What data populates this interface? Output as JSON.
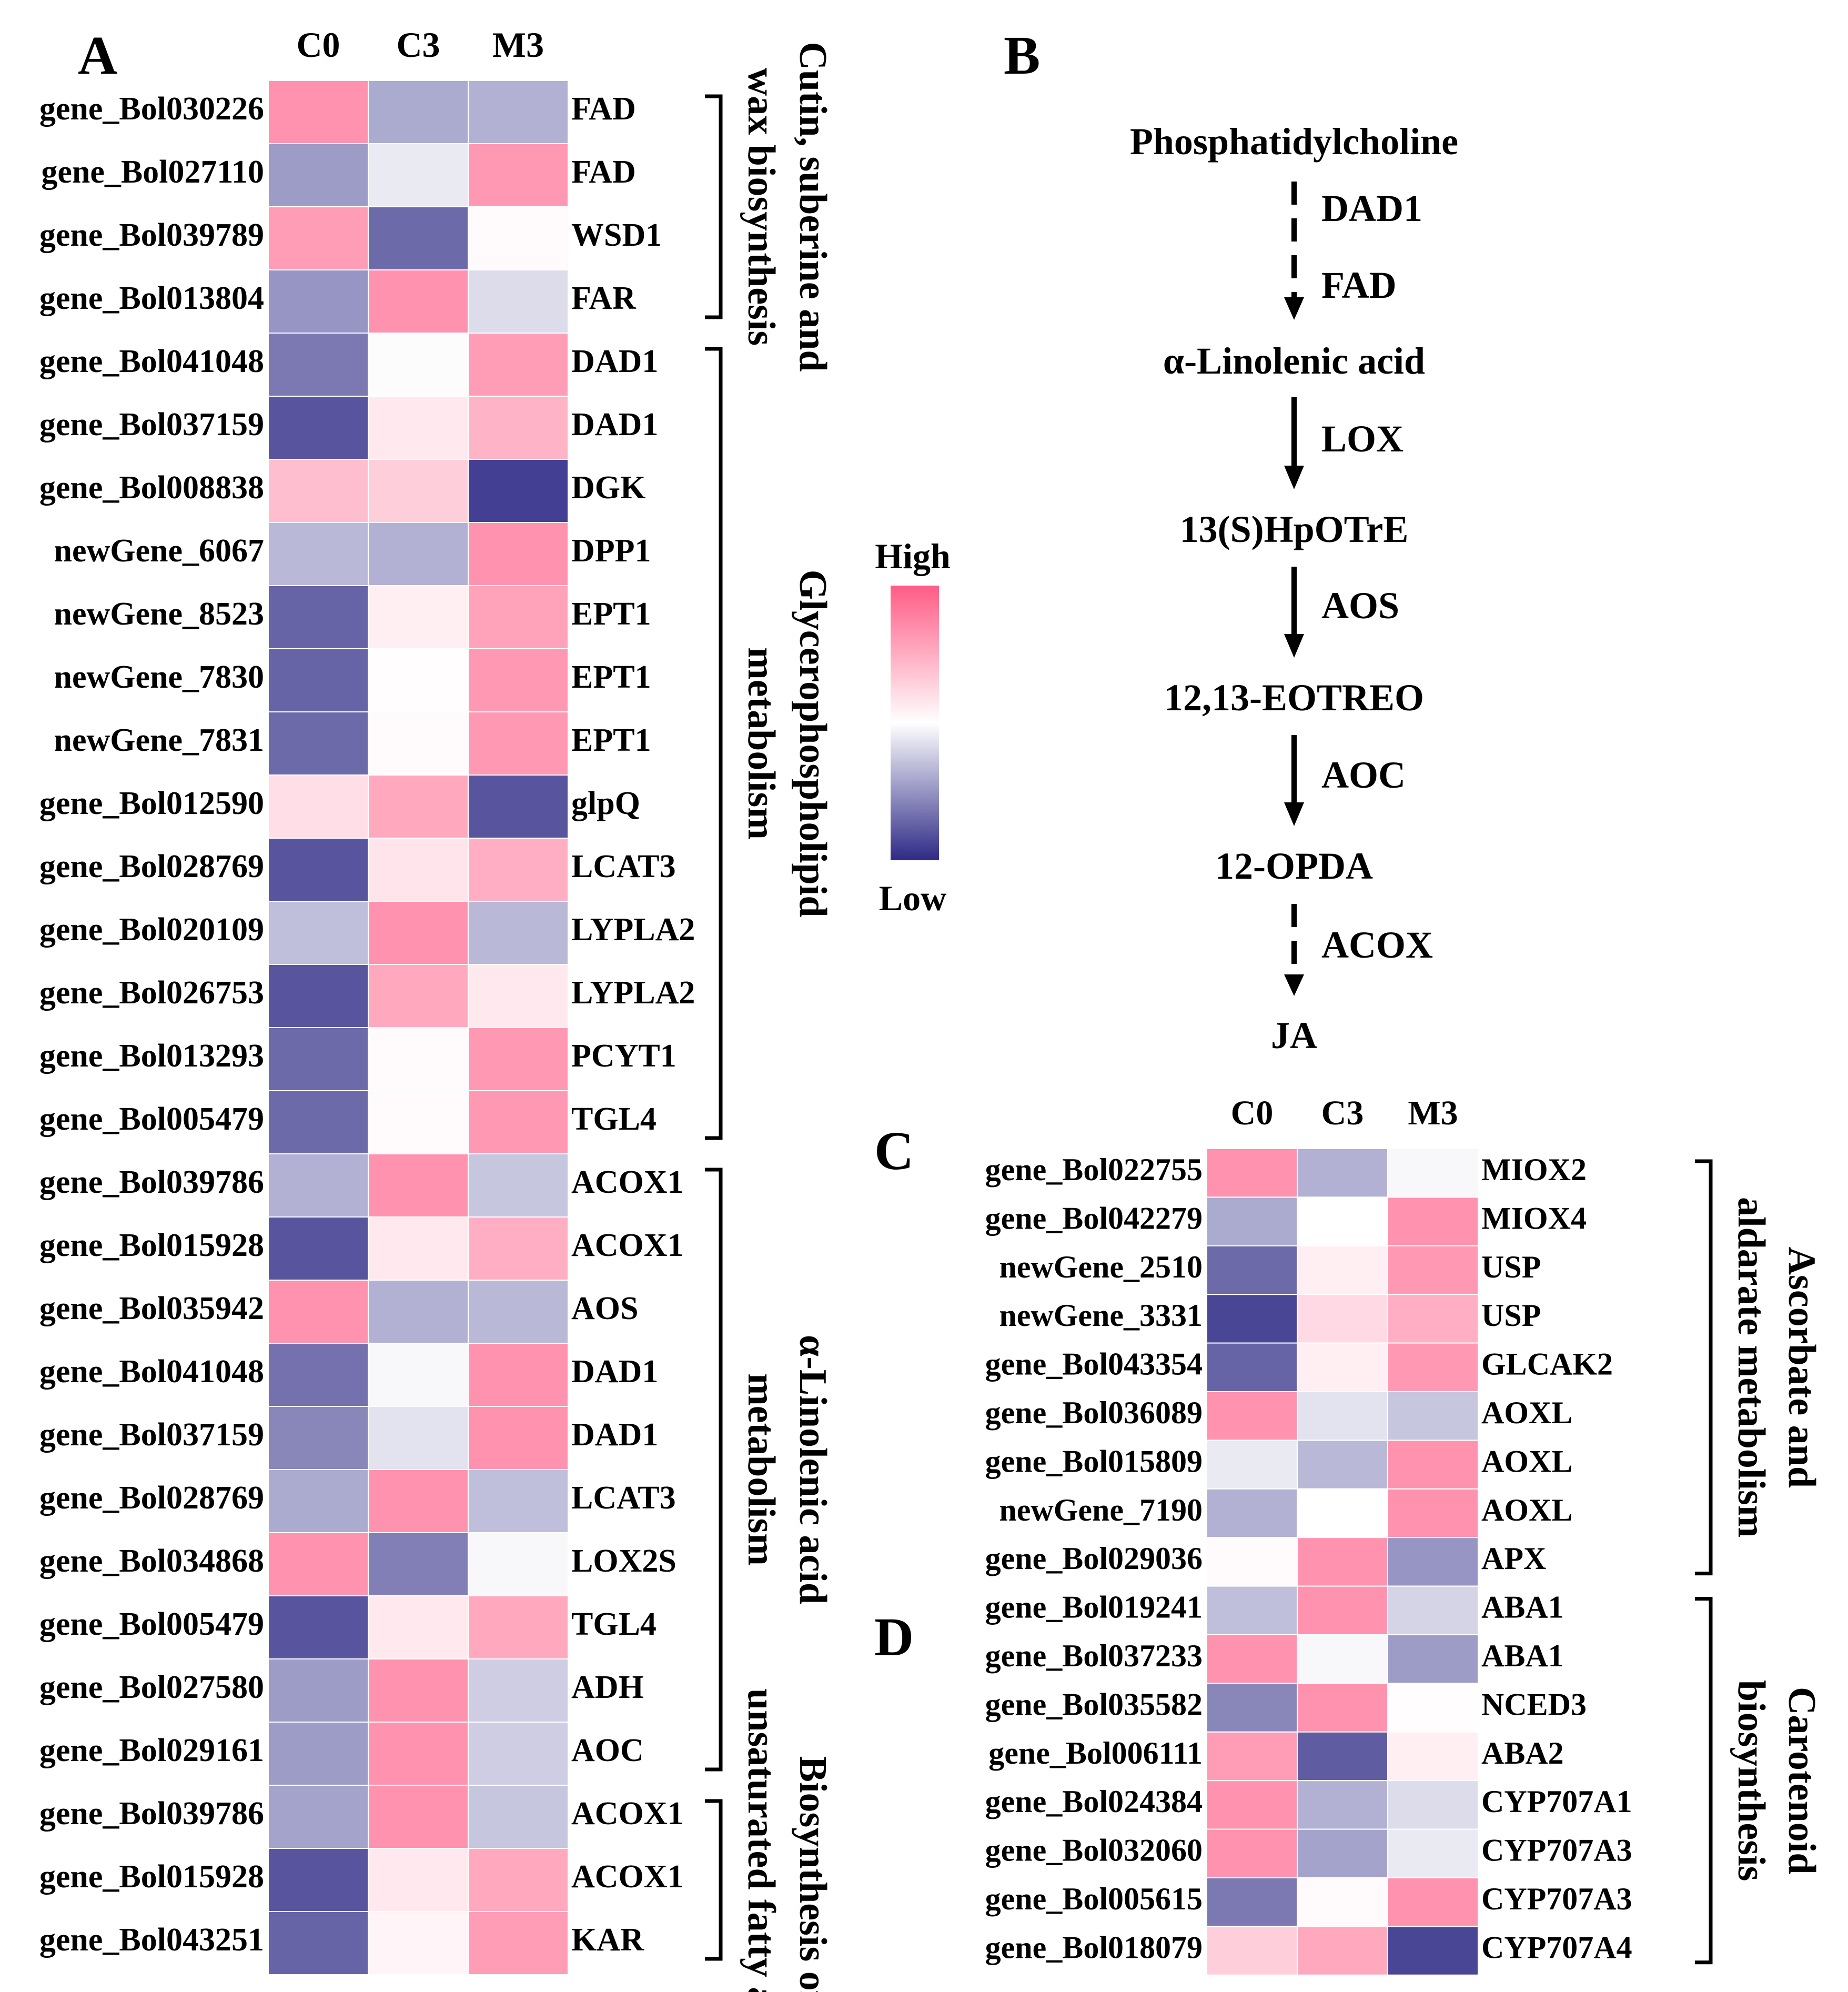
{
  "figure": {
    "panel_a_letter": "A",
    "panel_b_letter": "B",
    "panel_c_letter": "C",
    "panel_d_letter": "D"
  },
  "legend": {
    "high": "High",
    "low": "Low",
    "colors": [
      "#FF5C86",
      "#FFFFFF",
      "#2E2A86"
    ]
  },
  "pathway": {
    "nodes": [
      "Phosphatidylcholine",
      "α-Linolenic acid",
      "13(S)HpOTrE",
      "12,13-EOTREO",
      "12-OPDA",
      "JA"
    ],
    "steps": [
      {
        "labels": [
          "DAD1",
          "FAD"
        ],
        "dashed": true
      },
      {
        "labels": [
          "LOX"
        ],
        "dashed": false
      },
      {
        "labels": [
          "AOS"
        ],
        "dashed": false
      },
      {
        "labels": [
          "AOC"
        ],
        "dashed": false
      },
      {
        "labels": [
          "ACOX"
        ],
        "dashed": true
      }
    ]
  },
  "chart_data": [
    {
      "type": "heatmap",
      "panel": "A",
      "columns": [
        "C0",
        "C3",
        "M3"
      ],
      "color_scale": {
        "low": "Low",
        "high": "High",
        "range": [
          -1.5,
          1.5
        ]
      },
      "rows": [
        {
          "gene": "gene_Bol030226",
          "label": "FAD",
          "values": [
            1.0,
            -0.6,
            -0.55
          ]
        },
        {
          "gene": "gene_Bol027110",
          "label": "FAD",
          "values": [
            -0.7,
            -0.15,
            0.95
          ]
        },
        {
          "gene": "gene_Bol039789",
          "label": "WSD1",
          "values": [
            0.9,
            -1.05,
            0.05
          ]
        },
        {
          "gene": "gene_Bol013804",
          "label": "FAR",
          "values": [
            -0.75,
            1.0,
            -0.25
          ]
        },
        {
          "gene": "gene_Bol041048",
          "label": "DAD1",
          "values": [
            -0.95,
            -0.02,
            0.9
          ]
        },
        {
          "gene": "gene_Bol037159",
          "label": "DAD1",
          "values": [
            -1.2,
            0.2,
            0.7
          ]
        },
        {
          "gene": "gene_Bol008838",
          "label": "DGK",
          "values": [
            0.6,
            0.45,
            -1.35
          ]
        },
        {
          "gene": "newGene_6067",
          "label": "DPP1",
          "values": [
            -0.5,
            -0.55,
            1.0
          ]
        },
        {
          "gene": "newGene_8523",
          "label": "EPT1",
          "values": [
            -1.1,
            0.15,
            0.85
          ]
        },
        {
          "gene": "newGene_7830",
          "label": "EPT1",
          "values": [
            -1.1,
            0.02,
            0.95
          ]
        },
        {
          "gene": "newGene_7831",
          "label": "EPT1",
          "values": [
            -1.05,
            0.05,
            0.95
          ]
        },
        {
          "gene": "gene_Bol012590",
          "label": "glpQ",
          "values": [
            0.3,
            0.8,
            -1.2
          ]
        },
        {
          "gene": "gene_Bol028769",
          "label": "LCAT3",
          "values": [
            -1.2,
            0.25,
            0.75
          ]
        },
        {
          "gene": "gene_Bol020109",
          "label": "LYPLA2",
          "values": [
            -0.45,
            1.0,
            -0.5
          ]
        },
        {
          "gene": "gene_Bol026753",
          "label": "LYPLA2",
          "values": [
            -1.2,
            0.8,
            0.2
          ]
        },
        {
          "gene": "gene_Bol013293",
          "label": "PCYT1",
          "values": [
            -1.05,
            0.05,
            0.95
          ]
        },
        {
          "gene": "gene_Bol005479",
          "label": "TGL4",
          "values": [
            -1.05,
            0.05,
            0.95
          ]
        },
        {
          "gene": "gene_Bol039786",
          "label": "ACOX1",
          "values": [
            -0.55,
            1.0,
            -0.4
          ]
        },
        {
          "gene": "gene_Bol015928",
          "label": "ACOX1",
          "values": [
            -1.2,
            0.2,
            0.75
          ]
        },
        {
          "gene": "gene_Bol035942",
          "label": "AOS",
          "values": [
            1.0,
            -0.55,
            -0.5
          ]
        },
        {
          "gene": "gene_Bol041048",
          "label": "DAD1",
          "values": [
            -1.0,
            -0.05,
            1.0
          ]
        },
        {
          "gene": "gene_Bol037159",
          "label": "DAD1",
          "values": [
            -0.85,
            -0.2,
            1.0
          ]
        },
        {
          "gene": "gene_Bol028769",
          "label": "LCAT3",
          "values": [
            -0.6,
            1.0,
            -0.45
          ]
        },
        {
          "gene": "gene_Bol034868",
          "label": "LOX2S",
          "values": [
            1.0,
            -0.9,
            -0.05
          ]
        },
        {
          "gene": "gene_Bol005479",
          "label": "TGL4",
          "values": [
            -1.2,
            0.2,
            0.8
          ]
        },
        {
          "gene": "gene_Bol027580",
          "label": "ADH",
          "values": [
            -0.7,
            1.0,
            -0.35
          ]
        },
        {
          "gene": "gene_Bol029161",
          "label": "AOC",
          "values": [
            -0.7,
            1.0,
            -0.35
          ]
        },
        {
          "gene": "gene_Bol039786",
          "label": "ACOX1",
          "values": [
            -0.65,
            1.0,
            -0.4
          ]
        },
        {
          "gene": "gene_Bol015928",
          "label": "ACOX1",
          "values": [
            -1.2,
            0.2,
            0.8
          ]
        },
        {
          "gene": "gene_Bol043251",
          "label": "KAR",
          "values": [
            -1.1,
            0.1,
            0.9
          ]
        }
      ],
      "groups": [
        {
          "name": "Cutin, suberine and wax biosynthesis",
          "lines": [
            "Cutin, suberine and",
            "wax biosynthesis"
          ],
          "rows": [
            0,
            3
          ]
        },
        {
          "name": "Glycerophospholipid metabolism",
          "lines": [
            "Glycerophospholipid",
            "metabolism"
          ],
          "rows": [
            4,
            16
          ]
        },
        {
          "name": "α-Linolenic acid metabolism",
          "lines": [
            "α-Linolenic acid",
            "metabolism"
          ],
          "rows": [
            17,
            26
          ]
        },
        {
          "name": "Biosynthesis of unsaturated fatty acids",
          "lines": [
            "Biosynthesis of",
            "unsaturated fatty acids"
          ],
          "rows": [
            27,
            29
          ]
        }
      ]
    },
    {
      "type": "heatmap",
      "panel": "C/D",
      "columns": [
        "C0",
        "C3",
        "M3"
      ],
      "color_scale": {
        "low": "Low",
        "high": "High",
        "range": [
          -1.5,
          1.5
        ]
      },
      "rows": [
        {
          "gene": "gene_Bol022755",
          "label": "MIOX2",
          "values": [
            1.0,
            -0.55,
            -0.05
          ]
        },
        {
          "gene": "gene_Bol042279",
          "label": "MIOX4",
          "values": [
            -0.6,
            0.0,
            1.0
          ]
        },
        {
          "gene": "newGene_2510",
          "label": "USP",
          "values": [
            -1.05,
            0.15,
            0.95
          ]
        },
        {
          "gene": "newGene_3331",
          "label": "USP",
          "values": [
            -1.3,
            0.35,
            0.75
          ]
        },
        {
          "gene": "gene_Bol043354",
          "label": "GLCAK2",
          "values": [
            -1.1,
            0.15,
            0.95
          ]
        },
        {
          "gene": "gene_Bol036089",
          "label": "AOXL",
          "values": [
            1.0,
            -0.2,
            -0.4
          ]
        },
        {
          "gene": "gene_Bol015809",
          "label": "AOXL",
          "values": [
            -0.15,
            -0.5,
            1.0
          ]
        },
        {
          "gene": "newGene_7190",
          "label": "AOXL",
          "values": [
            -0.55,
            0.0,
            1.0
          ]
        },
        {
          "gene": "gene_Bol029036",
          "label": "APX",
          "values": [
            0.05,
            1.0,
            -0.75
          ]
        },
        {
          "gene": "gene_Bol019241",
          "label": "ABA1",
          "values": [
            -0.45,
            1.0,
            -0.3
          ]
        },
        {
          "gene": "gene_Bol037233",
          "label": "ABA1",
          "values": [
            1.0,
            -0.05,
            -0.7
          ]
        },
        {
          "gene": "gene_Bol035582",
          "label": "NCED3",
          "values": [
            -0.85,
            1.0,
            0.02
          ]
        },
        {
          "gene": "gene_Bol006111",
          "label": "ABA2",
          "values": [
            0.9,
            -1.15,
            0.15
          ]
        },
        {
          "gene": "gene_Bol024384",
          "label": "CYP707A1",
          "values": [
            1.0,
            -0.55,
            -0.25
          ]
        },
        {
          "gene": "gene_Bol032060",
          "label": "CYP707A3",
          "values": [
            1.0,
            -0.65,
            -0.15
          ]
        },
        {
          "gene": "gene_Bol005615",
          "label": "CYP707A3",
          "values": [
            -0.95,
            0.05,
            1.0
          ]
        },
        {
          "gene": "gene_Bol018079",
          "label": "CYP707A4",
          "values": [
            0.45,
            0.8,
            -1.3
          ]
        }
      ],
      "groups": [
        {
          "name": "Ascorbate and aldarate metabolism",
          "lines": [
            "Ascorbate and",
            "aldarate metabolism"
          ],
          "rows": [
            0,
            8
          ]
        },
        {
          "name": "Carotenoid biosynthesis",
          "lines": [
            "Carotenoid",
            "biosynthesis"
          ],
          "rows": [
            9,
            16
          ]
        }
      ]
    }
  ]
}
